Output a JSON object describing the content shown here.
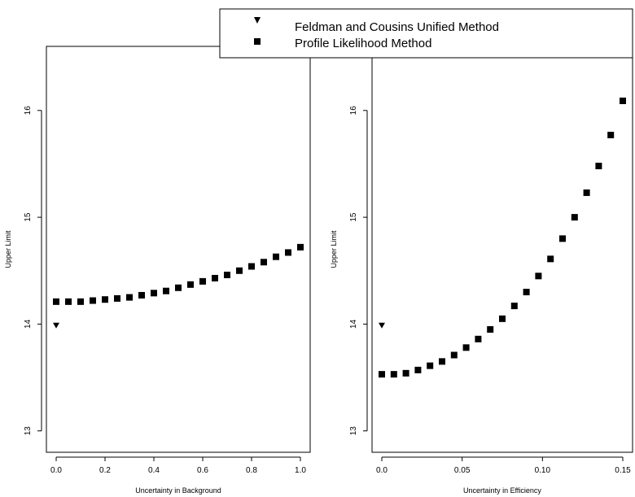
{
  "legend": [
    {
      "label": "Feldman and Cousins Unified Method",
      "marker": "triangle-down"
    },
    {
      "label": "Profile Likelihood Method",
      "marker": "square"
    }
  ],
  "chart_data": [
    {
      "type": "scatter",
      "xlabel": "Uncertainty in Background",
      "ylabel": "Upper Limit",
      "xlim": [
        0,
        1
      ],
      "ylim": [
        12.8,
        16.6
      ],
      "xticks": [
        0,
        0.2,
        0.4,
        0.6,
        0.8,
        1
      ],
      "xtick_labels": [
        "0.0",
        "0.2",
        "0.4",
        "0.6",
        "0.8",
        "1.0"
      ],
      "yticks": [
        13,
        14,
        15,
        16
      ],
      "ytick_labels": [
        "13",
        "14",
        "15",
        "16"
      ],
      "legend_placement": "top",
      "series": [
        {
          "name": "Feldman and Cousins Unified Method",
          "marker": "triangle-down",
          "x": [
            0
          ],
          "y": [
            13.99
          ]
        },
        {
          "name": "Profile Likelihood Method",
          "marker": "square",
          "x": [
            0,
            0.05,
            0.1,
            0.15,
            0.2,
            0.25,
            0.3,
            0.35,
            0.4,
            0.45,
            0.5,
            0.55,
            0.6,
            0.65,
            0.7,
            0.75,
            0.8,
            0.85,
            0.9,
            0.95,
            1.0
          ],
          "y": [
            14.21,
            14.21,
            14.21,
            14.22,
            14.23,
            14.24,
            14.25,
            14.27,
            14.29,
            14.31,
            14.34,
            14.37,
            14.4,
            14.43,
            14.46,
            14.5,
            14.54,
            14.58,
            14.63,
            14.67,
            14.72
          ]
        }
      ]
    },
    {
      "type": "scatter",
      "xlabel": "Uncertainty in Efficiency",
      "ylabel": "Upper Limit",
      "xlim": [
        0,
        0.15
      ],
      "ylim": [
        12.8,
        16.6
      ],
      "xticks": [
        0,
        0.05,
        0.1,
        0.15
      ],
      "xtick_labels": [
        "0.0",
        "0.05",
        "0.10",
        "0.15"
      ],
      "yticks": [
        13,
        14,
        15,
        16
      ],
      "ytick_labels": [
        "13",
        "14",
        "15",
        "16"
      ],
      "legend_placement": "top",
      "series": [
        {
          "name": "Feldman and Cousins Unified Method",
          "marker": "triangle-down",
          "x": [
            0
          ],
          "y": [
            13.99
          ]
        },
        {
          "name": "Profile Likelihood Method",
          "marker": "square",
          "x": [
            0,
            0.0075,
            0.015,
            0.0225,
            0.03,
            0.0375,
            0.045,
            0.0525,
            0.06,
            0.0675,
            0.075,
            0.0825,
            0.09,
            0.0975,
            0.105,
            0.1125,
            0.12,
            0.1275,
            0.135,
            0.1425,
            0.15
          ],
          "y": [
            13.53,
            13.53,
            13.54,
            13.57,
            13.61,
            13.65,
            13.71,
            13.78,
            13.86,
            13.95,
            14.05,
            14.17,
            14.3,
            14.45,
            14.61,
            14.8,
            15.0,
            15.23,
            15.48,
            15.77,
            16.09
          ]
        }
      ]
    }
  ]
}
